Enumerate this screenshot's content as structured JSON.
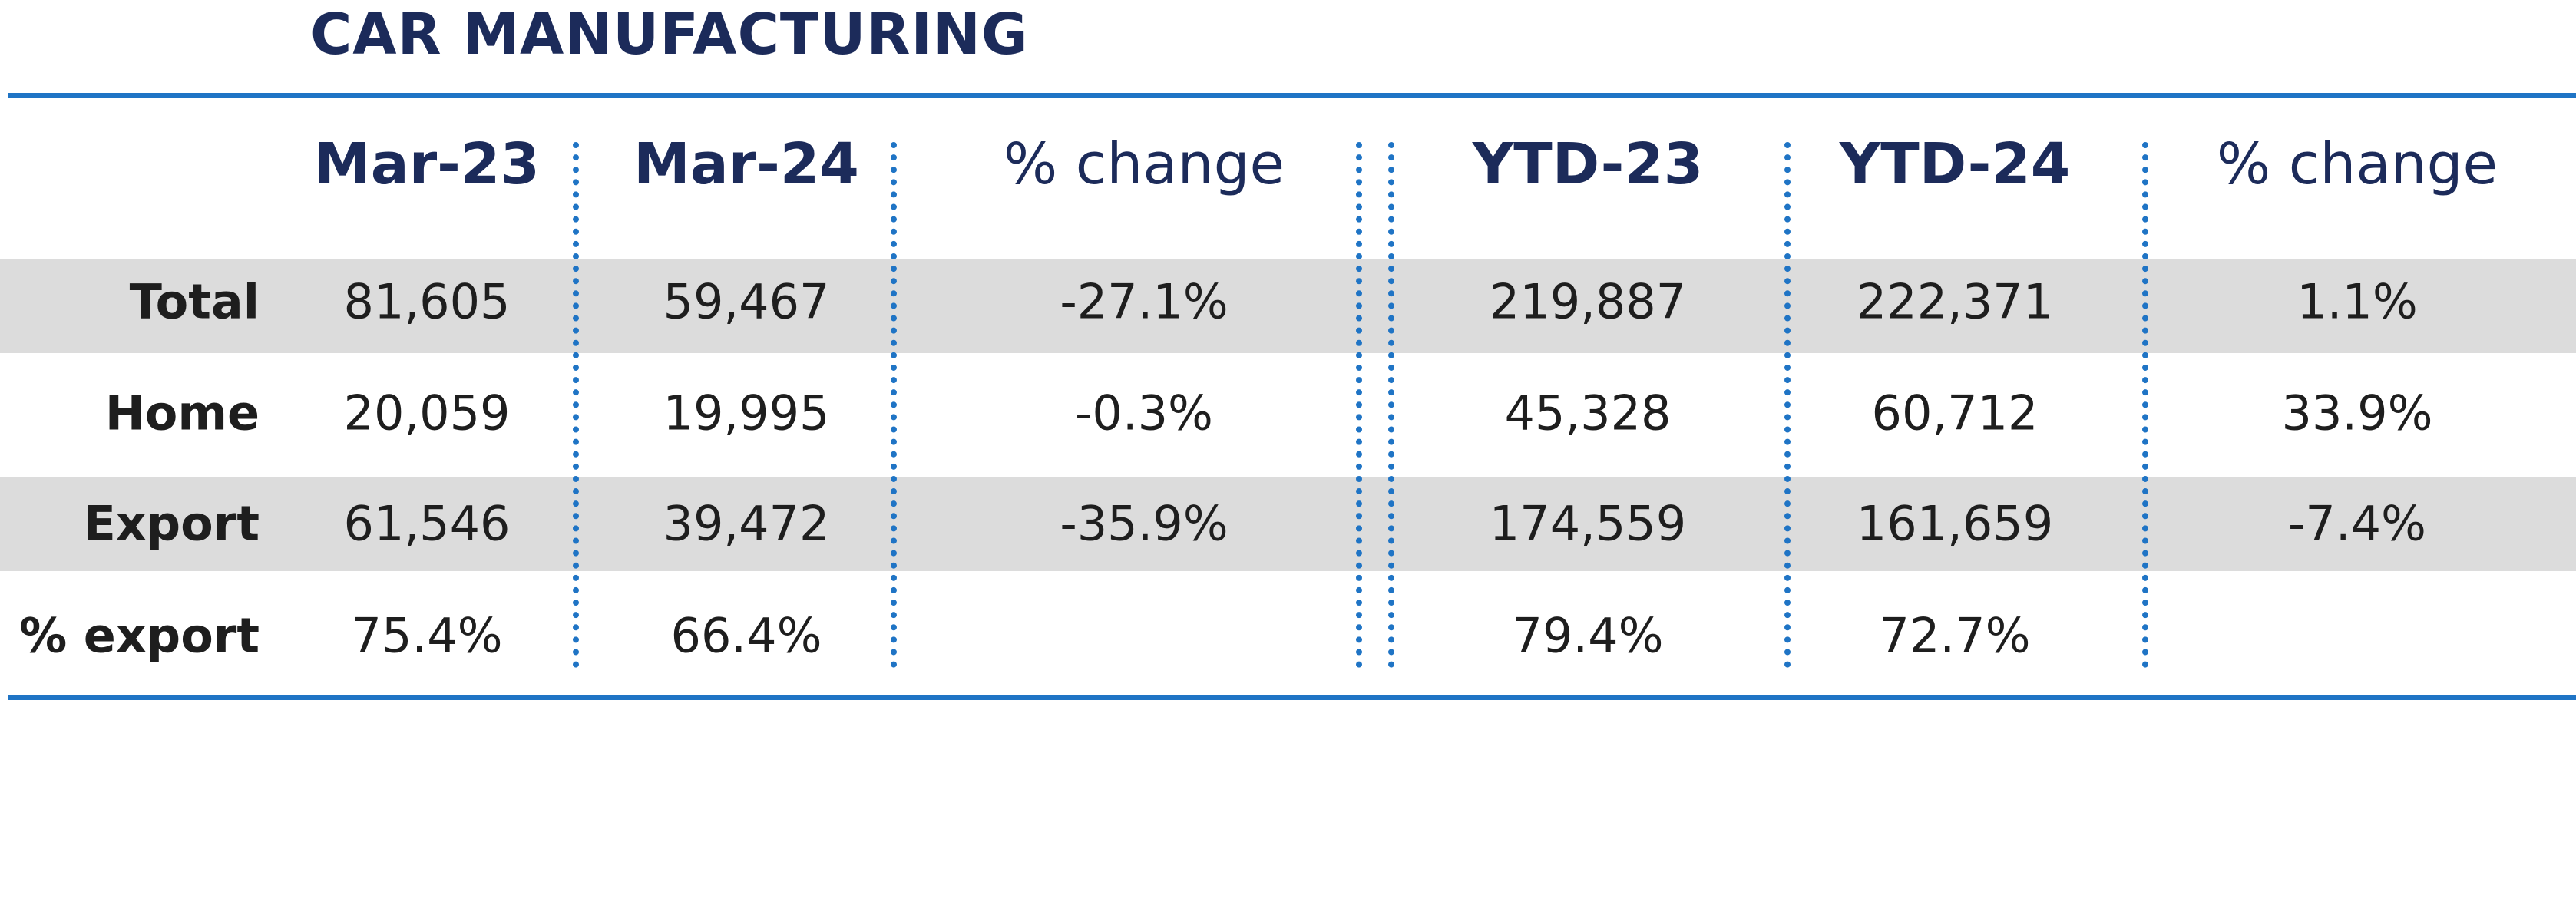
{
  "title": "CAR MANUFACTURING",
  "colors": {
    "title": "#1c2b5a",
    "rule": "#1f74c5",
    "band": "#dcdcdc",
    "text": "#1e1e1e"
  },
  "chart_data": {
    "type": "table",
    "columns": [
      {
        "label": "Mar-23",
        "bold": true
      },
      {
        "label": "Mar-24",
        "bold": true
      },
      {
        "label": "% change",
        "bold": false
      },
      {
        "label": "YTD-23",
        "bold": true
      },
      {
        "label": "YTD-24",
        "bold": true
      },
      {
        "label": "% change",
        "bold": false
      }
    ],
    "rows": [
      {
        "label": "Total",
        "values": [
          "81,605",
          "59,467",
          "-27.1%",
          "219,887",
          "222,371",
          "1.1%"
        ]
      },
      {
        "label": "Home",
        "values": [
          "20,059",
          "19,995",
          "-0.3%",
          "45,328",
          "60,712",
          "33.9%"
        ]
      },
      {
        "label": "Export",
        "values": [
          "61,546",
          "39,472",
          "-35.9%",
          "174,559",
          "161,659",
          "-7.4%"
        ]
      },
      {
        "label": "% export",
        "values": [
          "75.4%",
          "66.4%",
          "",
          "79.4%",
          "72.7%",
          ""
        ]
      }
    ]
  }
}
